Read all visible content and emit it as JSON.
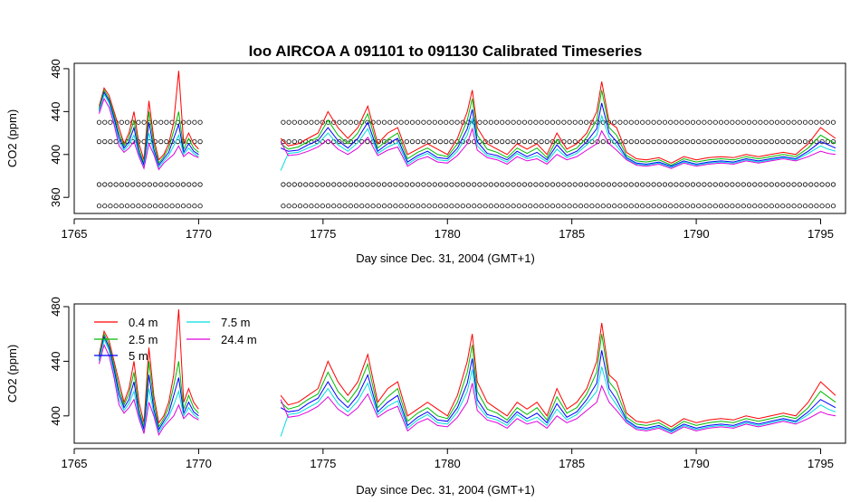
{
  "chart_data": [
    {
      "type": "line",
      "title": "Ioo   AIRCOA  A    091101  to  091130   Calibrated Timeseries",
      "xlabel": "Day since Dec. 31, 2004 (GMT+1)",
      "ylabel": "CO2 (ppm)",
      "xlim": [
        1765,
        1796
      ],
      "ylim": [
        345,
        485
      ],
      "xticks": [
        "1765",
        "1770",
        "1775",
        "1780",
        "1785",
        "1790",
        "1795"
      ],
      "yticks": [
        "360",
        "400",
        "440",
        "480"
      ],
      "legend": "none",
      "gap": [
        1770.2,
        1773.3
      ],
      "x": [
        1766.0,
        1766.2,
        1766.4,
        1766.6,
        1766.8,
        1767.0,
        1767.2,
        1767.4,
        1767.6,
        1767.8,
        1768.0,
        1768.2,
        1768.4,
        1768.6,
        1768.8,
        1769.0,
        1769.2,
        1769.4,
        1769.6,
        1769.8,
        1770.0,
        1773.3,
        1773.6,
        1774.0,
        1774.4,
        1774.8,
        1775.2,
        1775.6,
        1776.0,
        1776.4,
        1776.8,
        1777.2,
        1777.6,
        1778.0,
        1778.4,
        1778.8,
        1779.2,
        1779.6,
        1780.0,
        1780.4,
        1780.8,
        1781.0,
        1781.2,
        1781.6,
        1782.0,
        1782.4,
        1782.8,
        1783.2,
        1783.6,
        1784.0,
        1784.4,
        1784.8,
        1785.2,
        1785.6,
        1786.0,
        1786.2,
        1786.5,
        1786.8,
        1787.2,
        1787.6,
        1788.0,
        1788.5,
        1789.0,
        1789.5,
        1790.0,
        1790.5,
        1791.0,
        1791.5,
        1792.0,
        1792.5,
        1793.0,
        1793.5,
        1794.0,
        1794.5,
        1795.0,
        1795.3,
        1795.6
      ],
      "series": [
        {
          "color": "#ff0000",
          "values": [
            445,
            462,
            455,
            440,
            425,
            410,
            420,
            440,
            410,
            395,
            450,
            415,
            395,
            400,
            410,
            430,
            478,
            410,
            420,
            410,
            405,
            415,
            408,
            410,
            415,
            420,
            440,
            425,
            415,
            425,
            445,
            410,
            420,
            425,
            400,
            405,
            410,
            405,
            400,
            415,
            440,
            460,
            425,
            410,
            405,
            400,
            410,
            405,
            410,
            400,
            420,
            405,
            410,
            420,
            440,
            468,
            430,
            425,
            402,
            396,
            395,
            397,
            392,
            398,
            395,
            397,
            398,
            397,
            400,
            398,
            400,
            402,
            400,
            410,
            425,
            420,
            415
          ]
        },
        {
          "color": "#00bb00",
          "values": [
            443,
            460,
            452,
            437,
            420,
            408,
            416,
            432,
            405,
            392,
            440,
            410,
            392,
            398,
            406,
            422,
            440,
            405,
            415,
            406,
            402,
            410,
            405,
            407,
            412,
            416,
            432,
            418,
            410,
            420,
            438,
            406,
            414,
            420,
            396,
            402,
            406,
            400,
            398,
            410,
            432,
            452,
            418,
            405,
            402,
            397,
            406,
            401,
            406,
            397,
            414,
            402,
            406,
            416,
            432,
            460,
            425,
            418,
            399,
            394,
            393,
            395,
            390,
            396,
            393,
            395,
            396,
            395,
            398,
            396,
            398,
            400,
            398,
            406,
            418,
            414,
            410
          ]
        },
        {
          "color": "#0000ff",
          "values": [
            441,
            458,
            450,
            434,
            416,
            406,
            412,
            425,
            402,
            390,
            430,
            405,
            390,
            396,
            402,
            415,
            428,
            402,
            410,
            403,
            400,
            406,
            403,
            404,
            409,
            413,
            425,
            413,
            406,
            415,
            430,
            403,
            410,
            415,
            393,
            399,
            403,
            397,
            396,
            406,
            424,
            442,
            412,
            401,
            399,
            395,
            403,
            398,
            402,
            395,
            409,
            399,
            403,
            412,
            424,
            448,
            420,
            412,
            397,
            392,
            391,
            393,
            389,
            394,
            391,
            393,
            394,
            393,
            396,
            394,
            396,
            398,
            396,
            403,
            412,
            409,
            406
          ]
        },
        {
          "color": "#00dddd",
          "values": [
            440,
            456,
            448,
            431,
            412,
            404,
            409,
            418,
            400,
            388,
            420,
            402,
            388,
            394,
            399,
            408,
            418,
            400,
            406,
            401,
            398,
            385,
            401,
            402,
            406,
            410,
            420,
            409,
            403,
            411,
            424,
            401,
            407,
            411,
            391,
            397,
            401,
            395,
            394,
            403,
            418,
            434,
            408,
            399,
            397,
            393,
            401,
            396,
            399,
            393,
            405,
            397,
            401,
            409,
            418,
            436,
            416,
            408,
            396,
            391,
            390,
            392,
            388,
            393,
            390,
            392,
            393,
            392,
            395,
            393,
            395,
            397,
            395,
            401,
            408,
            405,
            403
          ]
        },
        {
          "color": "#dd00dd",
          "values": [
            438,
            452,
            444,
            428,
            408,
            402,
            406,
            412,
            398,
            387,
            410,
            400,
            386,
            392,
            396,
            400,
            408,
            398,
            402,
            399,
            397,
            412,
            399,
            400,
            403,
            407,
            414,
            405,
            400,
            406,
            416,
            399,
            404,
            407,
            389,
            395,
            398,
            393,
            392,
            399,
            410,
            424,
            404,
            397,
            395,
            391,
            398,
            394,
            396,
            391,
            400,
            395,
            398,
            404,
            410,
            422,
            410,
            404,
            395,
            390,
            389,
            391,
            387,
            392,
            389,
            391,
            392,
            391,
            394,
            392,
            394,
            396,
            394,
            398,
            403,
            401,
            400
          ]
        }
      ],
      "reference_levels": [
        352,
        372,
        412,
        430
      ]
    },
    {
      "type": "line",
      "xlabel": "Day since Dec. 31, 2004 (GMT+1)",
      "ylabel": "CO2 (ppm)",
      "xlim": [
        1765,
        1796
      ],
      "ylim": [
        380,
        482
      ],
      "xticks": [
        "1765",
        "1770",
        "1775",
        "1780",
        "1785",
        "1790",
        "1795"
      ],
      "yticks": [
        "400",
        "440",
        "480"
      ],
      "legend": "top-left",
      "legend_entries": [
        {
          "name": "0.4 m",
          "color": "#ff0000"
        },
        {
          "name": "2.5 m",
          "color": "#00bb00"
        },
        {
          "name": "5 m",
          "color": "#0000ff"
        },
        {
          "name": "7.5 m",
          "color": "#00dddd"
        },
        {
          "name": "24.4 m",
          "color": "#dd00dd"
        }
      ],
      "same_series_as_panel": 0
    }
  ]
}
